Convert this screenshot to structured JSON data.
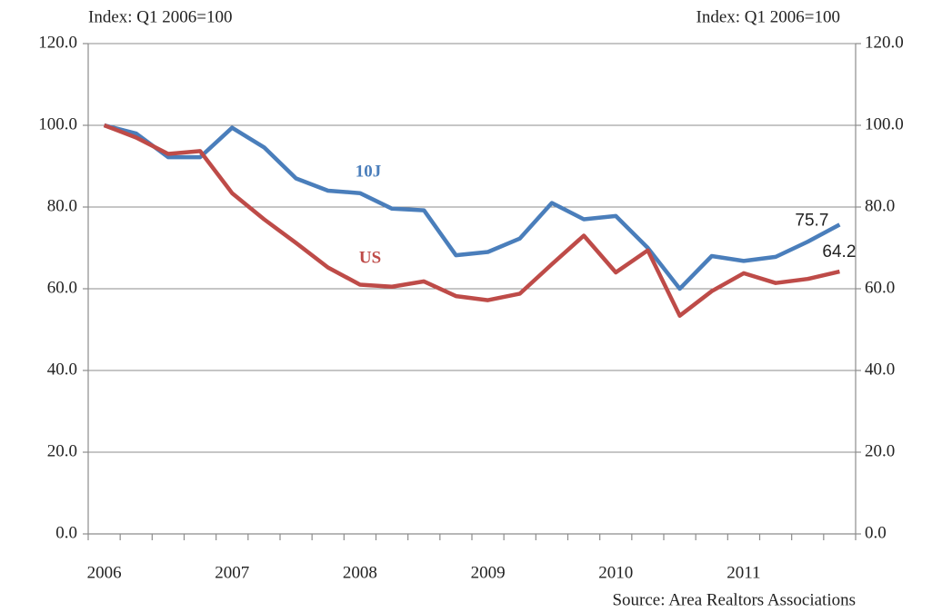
{
  "chart_data": {
    "type": "line",
    "y_label_left": "Index: Q1 2006=100",
    "y_label_right": "Index: Q1 2006=100",
    "source": "Source: Area Realtors Associations",
    "categories": [
      "2006",
      null,
      null,
      null,
      "2007",
      null,
      null,
      null,
      "2008",
      null,
      null,
      null,
      "2009",
      null,
      null,
      null,
      "2010",
      null,
      null,
      null,
      "2011",
      null,
      null,
      null
    ],
    "series": [
      {
        "name": "10J",
        "color": "#4a7ebb",
        "values": [
          100,
          98,
          92.2,
          92.2,
          99.4,
          94.6,
          87,
          84,
          83.4,
          79.6,
          79.2,
          68.2,
          69,
          72.3,
          81,
          77,
          77.8,
          70,
          60,
          68,
          66.8,
          67.8,
          71.5,
          75.7
        ]
      },
      {
        "name": "US",
        "color": "#be4b48",
        "values": [
          100,
          97,
          93,
          93.7,
          83.4,
          77,
          71.2,
          65.2,
          61,
          60.5,
          61.8,
          58.2,
          57.2,
          58.8,
          66,
          73,
          64,
          69.4,
          53.4,
          59.4,
          63.8,
          61.4,
          62.4,
          64.2
        ]
      }
    ],
    "ylim": [
      0,
      120
    ],
    "yticks": [
      {
        "value": 0,
        "label": "0.0"
      },
      {
        "value": 20,
        "label": "20.0"
      },
      {
        "value": 40,
        "label": "40.0"
      },
      {
        "value": 60,
        "label": "60.0"
      },
      {
        "value": 80,
        "label": "80.0"
      },
      {
        "value": 100,
        "label": "100.0"
      },
      {
        "value": 120,
        "label": "120.0"
      }
    ],
    "y2lim": [
      0,
      120
    ],
    "y2ticks": [
      {
        "value": 0,
        "label": "0.0"
      },
      {
        "value": 20,
        "label": "20.0"
      },
      {
        "value": 40,
        "label": "40.0"
      },
      {
        "value": 60,
        "label": "60.0"
      },
      {
        "value": 80,
        "label": "80.0"
      },
      {
        "value": 100,
        "label": "100.0"
      },
      {
        "value": 120,
        "label": "120.0"
      }
    ],
    "grid": true
  }
}
